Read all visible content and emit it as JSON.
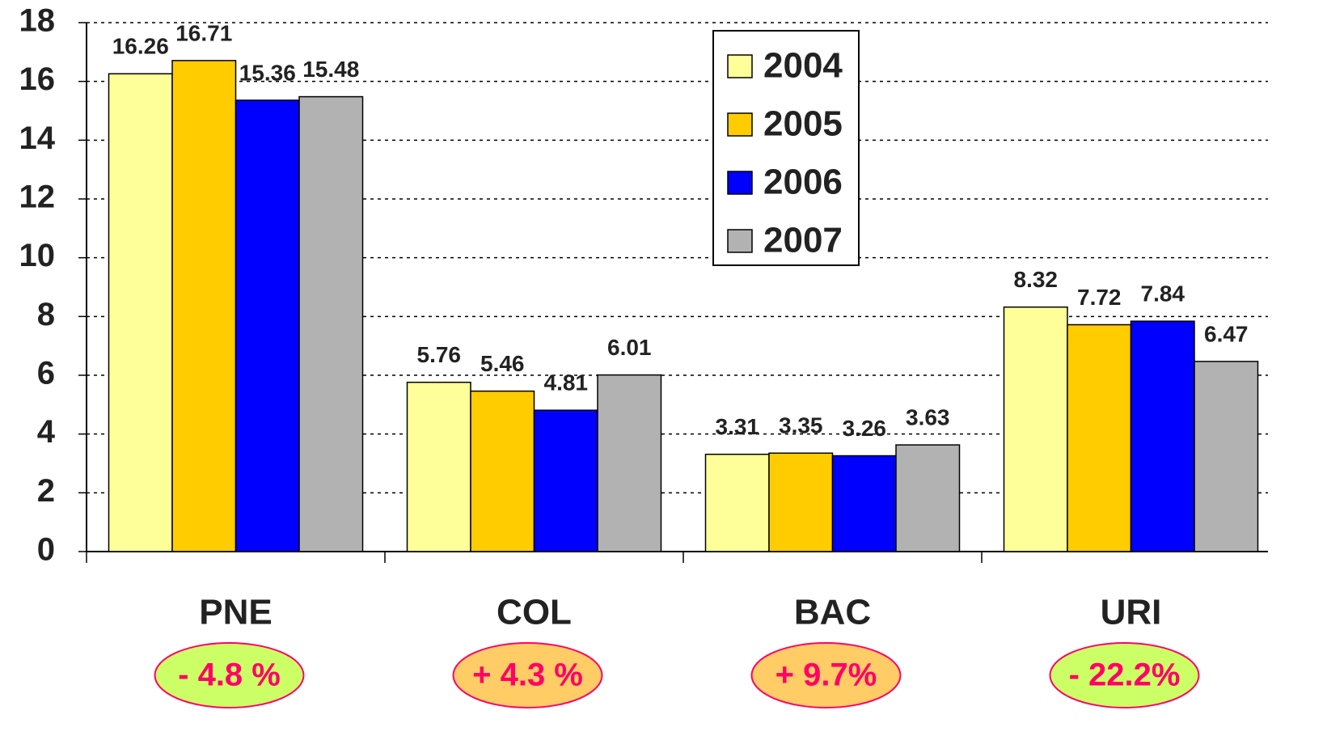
{
  "chart_data": {
    "type": "bar",
    "categories": [
      "PNE",
      "COL",
      "BAC",
      "URI"
    ],
    "series": [
      {
        "name": "2004",
        "color": "#ffff99",
        "values": [
          16.26,
          5.76,
          3.31,
          8.32
        ]
      },
      {
        "name": "2005",
        "color": "#ffcc00",
        "values": [
          16.71,
          5.46,
          3.35,
          7.72
        ]
      },
      {
        "name": "2006",
        "color": "#0000ff",
        "values": [
          15.36,
          4.81,
          3.26,
          7.84
        ]
      },
      {
        "name": "2007",
        "color": "#b2b2b2",
        "values": [
          15.48,
          6.01,
          3.63,
          6.47
        ]
      }
    ],
    "ylim": [
      0,
      18
    ],
    "yticks": [
      0,
      2,
      4,
      6,
      8,
      10,
      12,
      14,
      16,
      18
    ],
    "grid": true,
    "legend": "top-right",
    "annotations": [
      {
        "text": "- 4.8 %",
        "fill": "#ccff66"
      },
      {
        "text": "+ 4.3 %",
        "fill": "#ffcc66"
      },
      {
        "text": "+ 9.7%",
        "fill": "#ffcc66"
      },
      {
        "text": "- 22.2%",
        "fill": "#ccff66"
      }
    ],
    "annotation_text_color": "#ff0066"
  }
}
